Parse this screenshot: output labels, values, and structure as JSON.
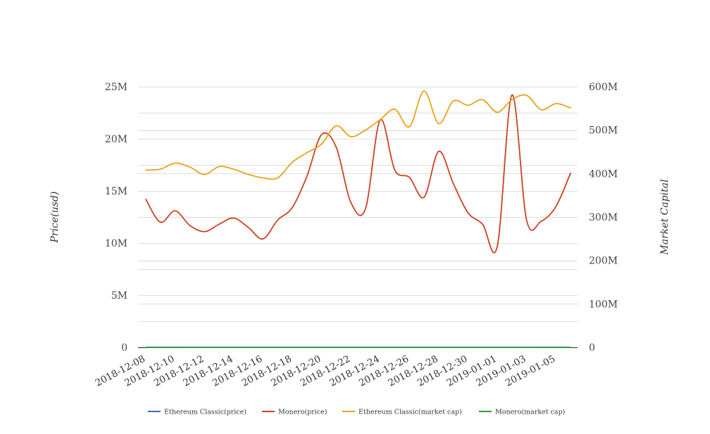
{
  "chart_data": {
    "type": "line",
    "title": "",
    "xlabel": "",
    "ylabel": "Price(usd)",
    "y2label": "Market Capital",
    "ylim": [
      0,
      25000000
    ],
    "y2lim": [
      0,
      600000000
    ],
    "yticks": [
      "0",
      "5M",
      "10M",
      "15M",
      "20M",
      "25M"
    ],
    "y2ticks": [
      "0",
      "100M",
      "200M",
      "300M",
      "400M",
      "500M",
      "600M"
    ],
    "x_tick_labels": [
      "2018-12-08",
      "2018-12-10",
      "2018-12-12",
      "2018-12-14",
      "2018-12-16",
      "2018-12-18",
      "2018-12-20",
      "2018-12-22",
      "2018-12-24",
      "2018-12-26",
      "2018-12-28",
      "2018-12-30",
      "2019-01-01",
      "2019-01-03",
      "2019-01-05"
    ],
    "x": [
      "2018-12-08",
      "2018-12-09",
      "2018-12-10",
      "2018-12-11",
      "2018-12-12",
      "2018-12-13",
      "2018-12-14",
      "2018-12-15",
      "2018-12-16",
      "2018-12-17",
      "2018-12-18",
      "2018-12-19",
      "2018-12-20",
      "2018-12-21",
      "2018-12-22",
      "2018-12-23",
      "2018-12-24",
      "2018-12-25",
      "2018-12-26",
      "2018-12-27",
      "2018-12-28",
      "2018-12-29",
      "2018-12-30",
      "2018-12-31",
      "2019-01-01",
      "2019-01-02",
      "2019-01-03",
      "2019-01-04",
      "2019-01-05",
      "2019-01-06"
    ],
    "grid": true,
    "legend_position": "bottom",
    "series": [
      {
        "name": "Ethereum Classic(price)",
        "axis": "left",
        "color": "#3a6cc4",
        "values": [
          5,
          5,
          5,
          5,
          5,
          5,
          5,
          5,
          5,
          5,
          5,
          5,
          5,
          5,
          5,
          5,
          5,
          5,
          5,
          5,
          5,
          5,
          5,
          5,
          5,
          5,
          5,
          5,
          5,
          5
        ]
      },
      {
        "name": "Monero(price)",
        "axis": "left",
        "color": "#cc4125",
        "values": [
          14200000,
          12000000,
          13100000,
          11700000,
          11100000,
          11800000,
          12400000,
          11500000,
          10400000,
          12200000,
          13400000,
          16400000,
          20400000,
          19200000,
          13900000,
          13300000,
          21800000,
          17000000,
          16300000,
          14400000,
          18800000,
          15700000,
          12900000,
          11800000,
          9700000,
          24200000,
          12200000,
          12100000,
          13500000,
          16700000
        ]
      },
      {
        "name": "Ethereum Classic(market cap)",
        "axis": "right",
        "color": "#e8a21a",
        "values": [
          408000000,
          410000000,
          424000000,
          415000000,
          398000000,
          416000000,
          410000000,
          398000000,
          390000000,
          390000000,
          426000000,
          448000000,
          468000000,
          510000000,
          485000000,
          500000000,
          524000000,
          548000000,
          508000000,
          590000000,
          515000000,
          567000000,
          557000000,
          570000000,
          541000000,
          570000000,
          580000000,
          547000000,
          561000000,
          551000000
        ]
      },
      {
        "name": "Monero(market cap)",
        "axis": "right",
        "color": "#2f9a3a",
        "values": [
          5,
          5,
          5,
          5,
          5,
          5,
          5,
          5,
          5,
          5,
          5,
          5,
          5,
          5,
          5,
          5,
          5,
          5,
          5,
          5,
          5,
          5,
          5,
          5,
          5,
          5,
          5,
          5,
          5,
          5
        ]
      }
    ]
  }
}
